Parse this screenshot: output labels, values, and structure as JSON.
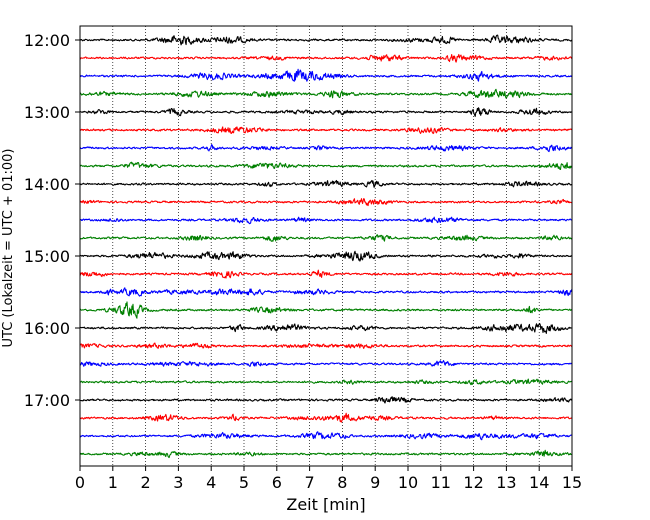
{
  "chart_data": {
    "type": "line",
    "title": "",
    "xlabel": "Zeit  [min]",
    "ylabel": "UTC (Lokalzeit = UTC + 01:00)",
    "xlim": [
      0,
      15
    ],
    "x_ticks": [
      0,
      1,
      2,
      3,
      4,
      5,
      6,
      7,
      8,
      9,
      10,
      11,
      12,
      13,
      14,
      15
    ],
    "x_tick_labels": [
      "0",
      "1",
      "2",
      "3",
      "4",
      "5",
      "6",
      "7",
      "8",
      "9",
      "10",
      "11",
      "12",
      "13",
      "14",
      "15"
    ],
    "y_tick_labels": [
      "12:00",
      "13:00",
      "14:00",
      "15:00",
      "16:00",
      "17:00"
    ],
    "grid": "vertical dotted",
    "legend": "none",
    "traces_per_hour": 4,
    "trace_minutes": 15,
    "trace_colors": [
      "#000000",
      "#ff0000",
      "#0000ff",
      "#008000"
    ],
    "traces": [
      {
        "start": "12:00",
        "color": "#000000"
      },
      {
        "start": "12:15",
        "color": "#ff0000"
      },
      {
        "start": "12:30",
        "color": "#0000ff"
      },
      {
        "start": "12:45",
        "color": "#008000"
      },
      {
        "start": "13:00",
        "color": "#000000"
      },
      {
        "start": "13:15",
        "color": "#ff0000"
      },
      {
        "start": "13:30",
        "color": "#0000ff"
      },
      {
        "start": "13:45",
        "color": "#008000"
      },
      {
        "start": "14:00",
        "color": "#000000"
      },
      {
        "start": "14:15",
        "color": "#ff0000"
      },
      {
        "start": "14:30",
        "color": "#0000ff"
      },
      {
        "start": "14:45",
        "color": "#008000"
      },
      {
        "start": "15:00",
        "color": "#000000"
      },
      {
        "start": "15:15",
        "color": "#ff0000"
      },
      {
        "start": "15:30",
        "color": "#0000ff"
      },
      {
        "start": "15:45",
        "color": "#008000"
      },
      {
        "start": "16:00",
        "color": "#000000"
      },
      {
        "start": "16:15",
        "color": "#ff0000"
      },
      {
        "start": "16:30",
        "color": "#0000ff"
      },
      {
        "start": "16:45",
        "color": "#008000"
      },
      {
        "start": "17:00",
        "color": "#000000"
      },
      {
        "start": "17:15",
        "color": "#ff0000"
      },
      {
        "start": "17:30",
        "color": "#0000ff"
      },
      {
        "start": "17:45",
        "color": "#008000"
      }
    ]
  }
}
